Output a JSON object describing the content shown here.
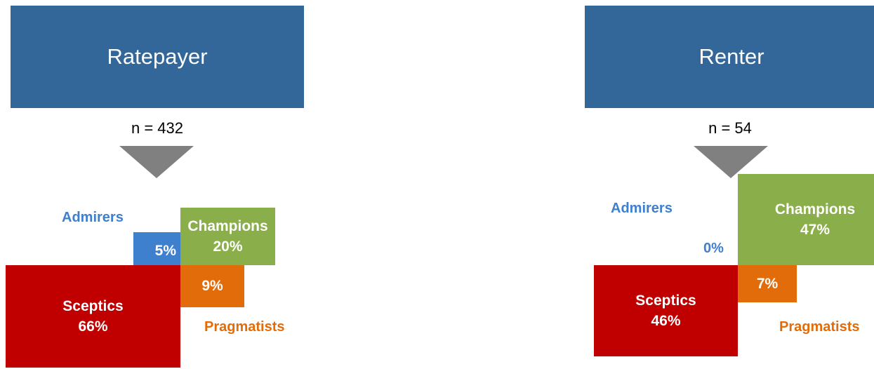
{
  "colors": {
    "header": "#336699",
    "admirers": "#3e7fce",
    "champions": "#8aae4a",
    "pragmatists": "#e36c0a",
    "sceptics": "#c00000",
    "arrow": "#808080"
  },
  "ratepayer": {
    "title": "Ratepayer",
    "n": "n = 432",
    "admirers": {
      "label": "Admirers",
      "pct": "5%",
      "value": 5
    },
    "champions": {
      "label": "Champions",
      "pct": "20%",
      "value": 20
    },
    "pragmatists": {
      "label": "Pragmatists",
      "pct": "9%",
      "value": 9
    },
    "sceptics": {
      "label": "Sceptics",
      "pct": "66%",
      "value": 66
    }
  },
  "renter": {
    "title": "Renter",
    "n": "n = 54",
    "admirers": {
      "label": "Admirers",
      "pct": "0%",
      "value": 0
    },
    "champions": {
      "label": "Champions",
      "pct": "47%",
      "value": 47
    },
    "pragmatists": {
      "label": "Pragmatists",
      "pct": "7%",
      "value": 7
    },
    "sceptics": {
      "label": "Sceptics",
      "pct": "46%",
      "value": 46
    }
  }
}
